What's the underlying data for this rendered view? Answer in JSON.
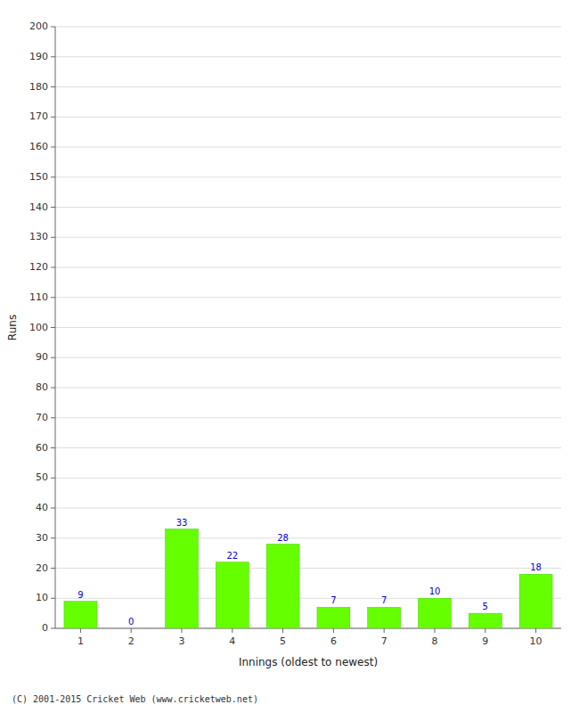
{
  "chart_data": {
    "type": "bar",
    "categories": [
      1,
      2,
      3,
      4,
      5,
      6,
      7,
      8,
      9,
      10
    ],
    "values": [
      9,
      0,
      33,
      22,
      28,
      7,
      7,
      10,
      5,
      18
    ],
    "color": "#66ff00",
    "data_labels": true,
    "xlabel": "Innings (oldest to newest)",
    "ylabel": "Runs",
    "ylim": [
      0,
      200
    ],
    "yticks": [
      0,
      10,
      20,
      30,
      40,
      50,
      60,
      70,
      80,
      90,
      100,
      110,
      120,
      130,
      140,
      150,
      160,
      170,
      180,
      190,
      200
    ],
    "grid": true,
    "annotations": [
      "(C) 2001-2015 Cricket Web (www.cricketweb.net)"
    ]
  }
}
